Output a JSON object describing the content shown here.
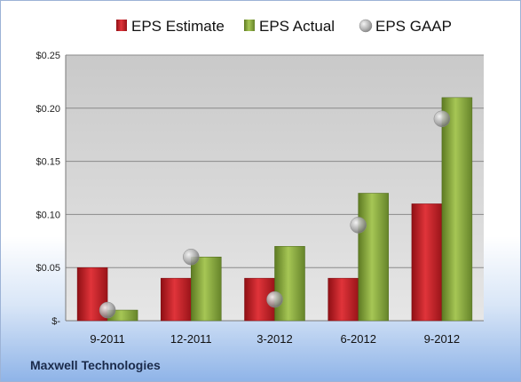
{
  "company": "Maxwell Technologies",
  "chart_data": {
    "type": "bar",
    "categories": [
      "9-2011",
      "12-2011",
      "3-2012",
      "6-2012",
      "9-2012"
    ],
    "series": [
      {
        "name": "EPS Estimate",
        "type": "bar",
        "color": "#c0282e",
        "values": [
          0.05,
          0.04,
          0.04,
          0.04,
          0.11
        ]
      },
      {
        "name": "EPS Actual",
        "type": "bar",
        "color": "#86a83a",
        "values": [
          0.01,
          0.06,
          0.07,
          0.12,
          0.21
        ]
      },
      {
        "name": "EPS GAAP",
        "type": "scatter",
        "color": "#a8a8a8",
        "values": [
          0.01,
          0.06,
          0.02,
          0.09,
          0.19
        ]
      }
    ],
    "yticks": [
      "$-",
      "$0.05",
      "$0.10",
      "$0.15",
      "$0.20",
      "$0.25"
    ],
    "ylim": [
      0,
      0.25
    ],
    "grid": true,
    "legend": "top"
  }
}
